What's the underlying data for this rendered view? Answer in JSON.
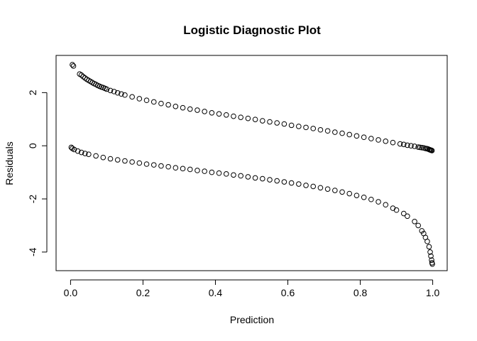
{
  "chart_data": {
    "type": "scatter",
    "title": "Logistic Diagnostic Plot",
    "xlabel": "Prediction",
    "ylabel": "Residuals",
    "xlim": [
      -0.04,
      1.04
    ],
    "ylim": [
      -4.7,
      3.4
    ],
    "xticks": [
      0.0,
      0.2,
      0.4,
      0.6,
      0.8,
      1.0
    ],
    "xtick_labels": [
      "0.0",
      "0.2",
      "0.4",
      "0.6",
      "0.8",
      "1.0"
    ],
    "yticks": [
      -4,
      -2,
      0,
      2
    ],
    "ytick_labels": [
      "-4",
      "-2",
      "0",
      "2"
    ],
    "grid": false,
    "legend": "none",
    "marker": "open-circle",
    "point_color": "#000000",
    "series": [
      {
        "x": [
          0.005,
          0.008,
          0.025,
          0.03,
          0.035,
          0.04,
          0.045,
          0.05,
          0.055,
          0.06,
          0.065,
          0.07,
          0.075,
          0.08,
          0.085,
          0.09,
          0.095,
          0.1,
          0.11,
          0.12,
          0.13,
          0.14,
          0.15,
          0.17,
          0.19,
          0.21,
          0.23,
          0.25,
          0.27,
          0.29,
          0.31,
          0.33,
          0.35,
          0.37,
          0.39,
          0.41,
          0.43,
          0.45,
          0.47,
          0.49,
          0.51,
          0.53,
          0.55,
          0.57,
          0.59,
          0.61,
          0.63,
          0.65,
          0.67,
          0.69,
          0.71,
          0.73,
          0.75,
          0.77,
          0.79,
          0.81,
          0.83,
          0.85,
          0.87,
          0.89,
          0.91,
          0.92,
          0.93,
          0.94,
          0.95,
          0.96,
          0.965,
          0.97,
          0.975,
          0.98,
          0.984,
          0.987,
          0.99,
          0.992,
          0.994,
          0.996,
          0.998
        ],
        "y": [
          3.05,
          3.0,
          2.7,
          2.66,
          2.6,
          2.55,
          2.5,
          2.46,
          2.42,
          2.38,
          2.34,
          2.31,
          2.27,
          2.24,
          2.21,
          2.19,
          2.16,
          2.13,
          2.08,
          2.04,
          1.99,
          1.95,
          1.91,
          1.84,
          1.77,
          1.71,
          1.65,
          1.59,
          1.54,
          1.48,
          1.43,
          1.38,
          1.34,
          1.29,
          1.24,
          1.2,
          1.16,
          1.11,
          1.07,
          1.03,
          0.99,
          0.94,
          0.9,
          0.86,
          0.82,
          0.77,
          0.73,
          0.69,
          0.65,
          0.6,
          0.56,
          0.51,
          0.47,
          0.42,
          0.37,
          0.32,
          0.27,
          0.22,
          0.17,
          0.12,
          0.07,
          0.05,
          0.02,
          0.0,
          -0.02,
          -0.05,
          -0.06,
          -0.07,
          -0.08,
          -0.1,
          -0.11,
          -0.12,
          -0.14,
          -0.15,
          -0.16,
          -0.17,
          -0.18
        ]
      },
      {
        "x": [
          0.002,
          0.005,
          0.01,
          0.02,
          0.03,
          0.04,
          0.05,
          0.07,
          0.09,
          0.11,
          0.13,
          0.15,
          0.17,
          0.19,
          0.21,
          0.23,
          0.25,
          0.27,
          0.29,
          0.31,
          0.33,
          0.35,
          0.37,
          0.39,
          0.41,
          0.43,
          0.45,
          0.47,
          0.49,
          0.51,
          0.53,
          0.55,
          0.57,
          0.59,
          0.61,
          0.63,
          0.65,
          0.67,
          0.69,
          0.71,
          0.73,
          0.75,
          0.77,
          0.79,
          0.81,
          0.83,
          0.85,
          0.87,
          0.89,
          0.9,
          0.92,
          0.93,
          0.95,
          0.96,
          0.97,
          0.975,
          0.98,
          0.985,
          0.99,
          0.993,
          0.995,
          0.997,
          0.998,
          0.999
        ],
        "y": [
          -0.06,
          -0.1,
          -0.14,
          -0.2,
          -0.25,
          -0.29,
          -0.32,
          -0.38,
          -0.44,
          -0.49,
          -0.53,
          -0.57,
          -0.61,
          -0.65,
          -0.69,
          -0.72,
          -0.76,
          -0.79,
          -0.83,
          -0.86,
          -0.89,
          -0.93,
          -0.96,
          -1.0,
          -1.03,
          -1.06,
          -1.1,
          -1.13,
          -1.17,
          -1.21,
          -1.24,
          -1.28,
          -1.32,
          -1.36,
          -1.4,
          -1.44,
          -1.49,
          -1.53,
          -1.58,
          -1.63,
          -1.68,
          -1.74,
          -1.8,
          -1.87,
          -1.94,
          -2.02,
          -2.11,
          -2.22,
          -2.35,
          -2.42,
          -2.55,
          -2.65,
          -2.85,
          -3.0,
          -3.2,
          -3.3,
          -3.45,
          -3.6,
          -3.8,
          -4.0,
          -4.15,
          -4.3,
          -4.4,
          -4.45
        ]
      }
    ]
  }
}
